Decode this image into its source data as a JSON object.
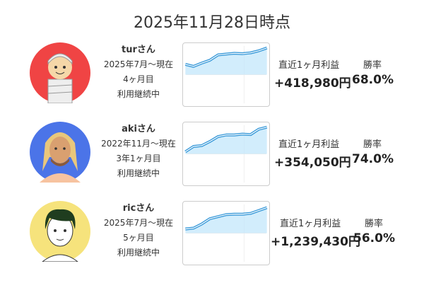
{
  "header": {
    "title": "2025年11月28日時点"
  },
  "labels": {
    "profit": "直近1ヶ月利益",
    "winrate": "勝率"
  },
  "users": [
    {
      "name": "turさん",
      "period": "2025年7月〜現在",
      "months": "4ヶ月目",
      "status": "利用継続中",
      "profit": "+418,980円",
      "winrate": "68.0%",
      "avatar_bg": "#f04444",
      "avatar_icon": "mummy-avatar-icon"
    },
    {
      "name": "akiさん",
      "period": "2022年11月〜現在",
      "months": "3年1ヶ月目",
      "status": "利用継続中",
      "profit": "+354,050円",
      "winrate": "74.0%",
      "avatar_bg": "#4b74e8",
      "avatar_icon": "blond-man-avatar-icon"
    },
    {
      "name": "ricさん",
      "period": "2025年7月〜現在",
      "months": "5ヶ月目",
      "status": "利用継続中",
      "profit": "+1,239,430円",
      "winrate": "56.0%",
      "avatar_bg": "#f6e37c",
      "avatar_icon": "dark-hair-man-avatar-icon"
    }
  ],
  "chart_data": [
    {
      "type": "area",
      "series": [
        {
          "values": [
            45,
            40,
            48,
            55,
            68,
            70,
            72,
            71,
            73,
            78,
            85
          ]
        }
      ],
      "line_color": "#3a9ad9",
      "fill_color": "#bfe6fb",
      "grid": true
    },
    {
      "type": "area",
      "series": [
        {
          "values": [
            25,
            38,
            40,
            50,
            62,
            66,
            66,
            68,
            67,
            80,
            85
          ]
        }
      ],
      "line_color": "#3a9ad9",
      "fill_color": "#bfe6fb",
      "grid": true
    },
    {
      "type": "area",
      "series": [
        {
          "values": [
            30,
            32,
            42,
            55,
            60,
            65,
            66,
            66,
            68,
            75,
            82
          ]
        }
      ],
      "line_color": "#3a9ad9",
      "fill_color": "#bfe6fb",
      "grid": true
    }
  ]
}
